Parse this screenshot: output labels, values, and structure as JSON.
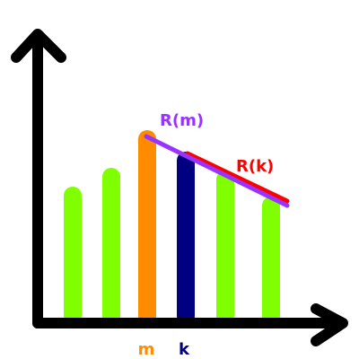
{
  "labels": {
    "m": "m",
    "k": "k",
    "r_m": "R(m)",
    "r_k": "R(k)"
  },
  "colors": {
    "axis": "#000000",
    "bar_default": "#80ff00",
    "bar_m": "#ff8c00",
    "bar_k": "#000080",
    "line_r_m": "#9933ff",
    "line_r_k": "#ff0000"
  }
}
